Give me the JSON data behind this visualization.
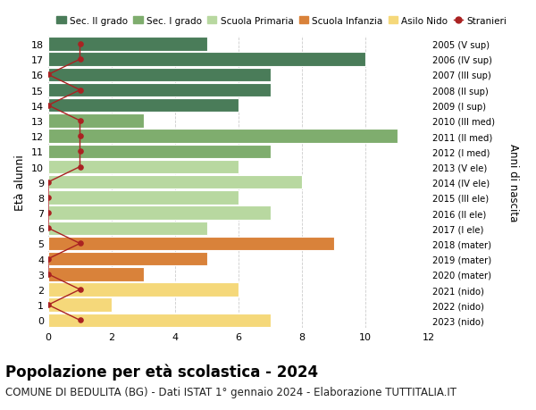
{
  "ages": [
    18,
    17,
    16,
    15,
    14,
    13,
    12,
    11,
    10,
    9,
    8,
    7,
    6,
    5,
    4,
    3,
    2,
    1,
    0
  ],
  "labels_right": [
    "2005 (V sup)",
    "2006 (IV sup)",
    "2007 (III sup)",
    "2008 (II sup)",
    "2009 (I sup)",
    "2010 (III med)",
    "2011 (II med)",
    "2012 (I med)",
    "2013 (V ele)",
    "2014 (IV ele)",
    "2015 (III ele)",
    "2016 (II ele)",
    "2017 (I ele)",
    "2018 (mater)",
    "2019 (mater)",
    "2020 (mater)",
    "2021 (nido)",
    "2022 (nido)",
    "2023 (nido)"
  ],
  "bar_values": [
    5,
    10,
    7,
    7,
    6,
    3,
    11,
    7,
    6,
    8,
    6,
    7,
    5,
    9,
    5,
    3,
    6,
    2,
    7
  ],
  "bar_colors": [
    "#4a7c59",
    "#4a7c59",
    "#4a7c59",
    "#4a7c59",
    "#4a7c59",
    "#7fad6e",
    "#7fad6e",
    "#7fad6e",
    "#b8d8a0",
    "#b8d8a0",
    "#b8d8a0",
    "#b8d8a0",
    "#b8d8a0",
    "#d9823a",
    "#d9823a",
    "#d9823a",
    "#f5d87a",
    "#f5d87a",
    "#f5d87a"
  ],
  "stranieri_x": [
    1,
    1,
    0,
    1,
    0,
    1,
    1,
    1,
    1,
    0,
    0,
    0,
    0,
    1,
    0,
    0,
    1,
    0,
    1
  ],
  "colors": {
    "sec_II": "#4a7c59",
    "sec_I": "#7fad6e",
    "primaria": "#b8d8a0",
    "infanzia": "#d9823a",
    "nido": "#f5d87a",
    "stranieri": "#aa2222",
    "line": "#aa2222",
    "bg": "#ffffff",
    "grid": "#cccccc"
  },
  "legend_labels": [
    "Sec. II grado",
    "Sec. I grado",
    "Scuola Primaria",
    "Scuola Infanzia",
    "Asilo Nido",
    "Stranieri"
  ],
  "ylabel_left": "Età alunni",
  "ylabel_right": "Anni di nascita",
  "xlim": [
    0,
    12
  ],
  "xticks": [
    0,
    2,
    4,
    6,
    8,
    10,
    12
  ],
  "title": "Popolazione per età scolastica - 2024",
  "subtitle": "COMUNE DI BEDULITA (BG) - Dati ISTAT 1° gennaio 2024 - Elaborazione TUTTITALIA.IT",
  "title_fontsize": 12,
  "subtitle_fontsize": 8.5
}
